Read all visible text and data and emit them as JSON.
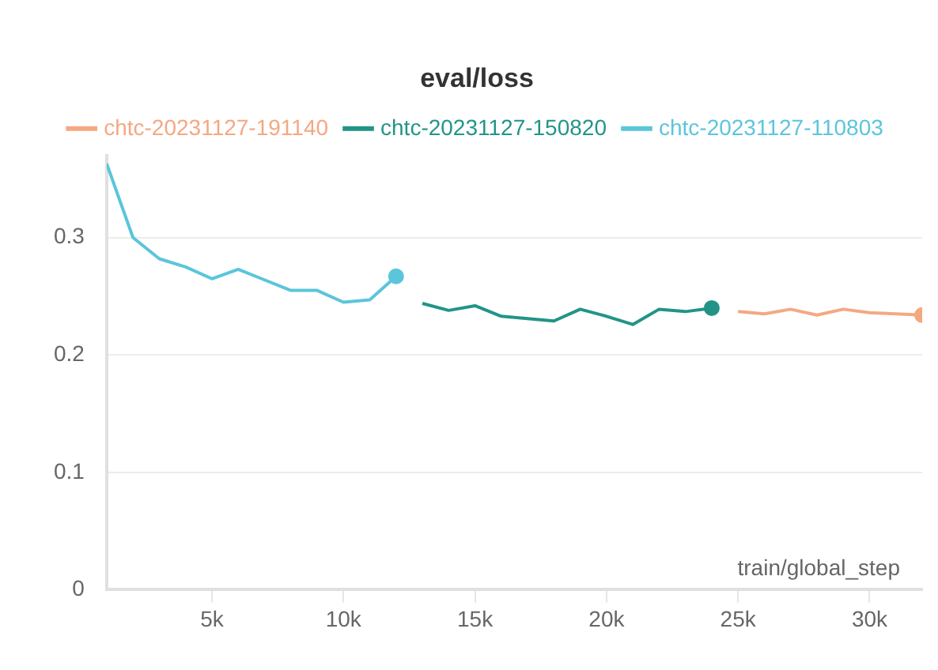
{
  "chart_data": {
    "type": "line",
    "title": "eval/loss",
    "xlabel": "train/global_step",
    "series": [
      {
        "name": "chtc-20231127-191140",
        "color": "#f4a882",
        "x": [
          25000,
          26000,
          27000,
          28000,
          29000,
          30000,
          31000,
          32000
        ],
        "values": [
          0.237,
          0.235,
          0.239,
          0.234,
          0.239,
          0.236,
          0.235,
          0.234
        ]
      },
      {
        "name": "chtc-20231127-150820",
        "color": "#229487",
        "x": [
          13000,
          14000,
          15000,
          16000,
          17000,
          18000,
          19000,
          20000,
          21000,
          22000,
          23000,
          24000
        ],
        "values": [
          0.244,
          0.238,
          0.242,
          0.233,
          0.231,
          0.229,
          0.239,
          0.233,
          0.226,
          0.239,
          0.237,
          0.24
        ]
      },
      {
        "name": "chtc-20231127-110803",
        "color": "#5bc5db",
        "x": [
          1000,
          2000,
          3000,
          4000,
          5000,
          6000,
          7000,
          8000,
          9000,
          10000,
          11000,
          12000
        ],
        "values": [
          0.363,
          0.3,
          0.282,
          0.275,
          0.265,
          0.273,
          0.264,
          0.255,
          0.255,
          0.245,
          0.247,
          0.267
        ]
      }
    ],
    "xlim": [
      1000,
      32000
    ],
    "xticks": [
      {
        "value": 5000,
        "label": "5k"
      },
      {
        "value": 10000,
        "label": "10k"
      },
      {
        "value": 15000,
        "label": "15k"
      },
      {
        "value": 20000,
        "label": "20k"
      },
      {
        "value": 25000,
        "label": "25k"
      },
      {
        "value": 30000,
        "label": "30k"
      }
    ],
    "ylim": [
      0,
      0.37
    ],
    "yticks": [
      0,
      0.1,
      0.2,
      0.3
    ],
    "grid": "y",
    "legend": "top",
    "line_style": "solid"
  }
}
